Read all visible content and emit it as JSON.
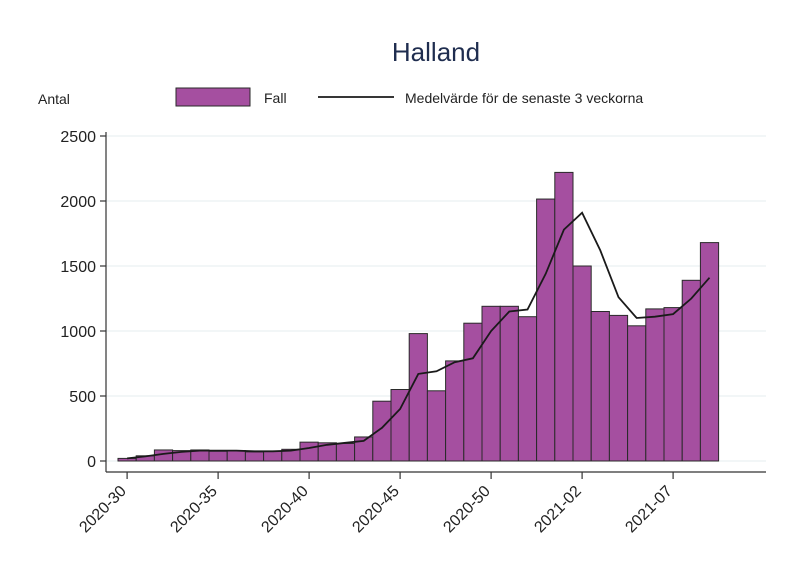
{
  "chart_data": {
    "type": "bar",
    "title": "Halland",
    "ylabel": "Antal",
    "xlabel": "",
    "ylim": [
      0,
      2500
    ],
    "yticks": [
      "0",
      "500",
      "1000",
      "1500",
      "2000",
      "2500"
    ],
    "xtick_labels": [
      "2020-30",
      "2020-35",
      "2020-40",
      "2020-45",
      "2020-50",
      "2021-02",
      "2021-07"
    ],
    "grid": true,
    "legend_position": "top",
    "colors": {
      "bar": "#a54fa0",
      "line": "#1a1a1a"
    },
    "categories": [
      "2020-30",
      "2020-31",
      "2020-32",
      "2020-33",
      "2020-34",
      "2020-35",
      "2020-36",
      "2020-37",
      "2020-38",
      "2020-39",
      "2020-40",
      "2020-41",
      "2020-42",
      "2020-43",
      "2020-44",
      "2020-45",
      "2020-46",
      "2020-47",
      "2020-48",
      "2020-49",
      "2020-50",
      "2020-51",
      "2020-52",
      "2020-53",
      "2021-01",
      "2021-02",
      "2021-03",
      "2021-04",
      "2021-05",
      "2021-06",
      "2021-07",
      "2021-08",
      "2021-09"
    ],
    "series": [
      {
        "name": "Fall",
        "type": "bar",
        "values": [
          20,
          40,
          85,
          80,
          85,
          75,
          80,
          70,
          75,
          90,
          145,
          140,
          135,
          185,
          460,
          550,
          980,
          540,
          770,
          1060,
          1190,
          1190,
          1110,
          2015,
          2220,
          1500,
          1150,
          1120,
          1040,
          1170,
          1180,
          1390,
          1680
        ]
      },
      {
        "name": "Medelvärde för de senaste 3 veckorna",
        "type": "line",
        "values": [
          20,
          35,
          55,
          70,
          80,
          80,
          80,
          75,
          75,
          80,
          100,
          125,
          140,
          155,
          255,
          400,
          670,
          690,
          760,
          790,
          1000,
          1150,
          1165,
          1440,
          1780,
          1910,
          1620,
          1260,
          1100,
          1110,
          1130,
          1250,
          1410
        ]
      }
    ]
  }
}
